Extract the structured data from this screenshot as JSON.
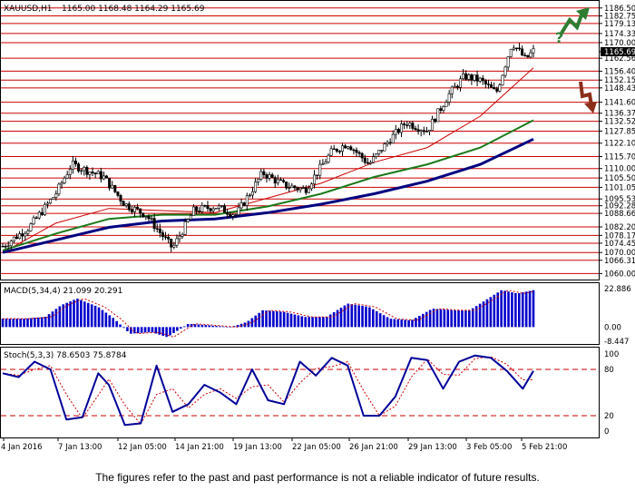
{
  "header": {
    "symbol": "XAUUSD,H1",
    "ohlc": "1165.00 1168.48 1164.29 1165.69",
    "macd_label": "MACD(5,34,4) 21.099 20.291",
    "stoch_label": "Stoch(5,3,3) 78.6503 75.8784"
  },
  "footer": {
    "disclaimer": "The figures refer to the past and past performance is not a reliable indicator of future results."
  },
  "colors": {
    "grid_line": "#cc0000",
    "candle": "#000000",
    "ma_fast": "#cc0000",
    "ma_mid": "#1a7a1a",
    "ma_slow": "#000080",
    "macd_hist": "#0000cc",
    "macd_signal": "#cc0000",
    "stoch_main": "#000099",
    "stoch_signal": "#cc0000",
    "arrow_up": "#2e7d32",
    "arrow_down": "#8b2e1a"
  },
  "icons": {
    "up": "green-up-arrow-icon",
    "down": "brown-down-arrow-icon",
    "question": "question-mark-icon"
  },
  "chart_data": {
    "type": "candlestick",
    "symbol": "XAUUSD",
    "timeframe": "H1",
    "price_axis": {
      "labels": [
        "1186.50",
        "1182.75",
        "1179.13",
        "1174.33",
        "1170.00",
        "1165.69",
        "1162.56",
        "1156.40",
        "1152.15",
        "1148.43",
        "1141.60",
        "1136.37",
        "1132.52",
        "1127.85",
        "1122.10",
        "1115.70",
        "1110.00",
        "1105.50",
        "1101.05",
        "1095.53",
        "1092.28",
        "1088.66",
        "1082.20",
        "1078.17",
        "1074.45",
        "1070.00",
        "1066.31",
        "1060.00"
      ],
      "current_price": "1165.69",
      "range": [
        1058,
        1189
      ]
    },
    "time_axis": {
      "labels": [
        "4 Jan 2016",
        "7 Jan 13:00",
        "12 Jan 05:00",
        "14 Jan 21:00",
        "19 Jan 13:00",
        "22 Jan 05:00",
        "26 Jan 21:00",
        "29 Jan 13:00",
        "3 Feb 05:00",
        "5 Feb 21:00"
      ]
    },
    "price_path": {
      "x_fraction": [
        0,
        0.05,
        0.1,
        0.13,
        0.19,
        0.23,
        0.27,
        0.32,
        0.36,
        0.4,
        0.44,
        0.49,
        0.53,
        0.57,
        0.62,
        0.65,
        0.69,
        0.73,
        0.76,
        0.8,
        0.84,
        0.87,
        0.9,
        0.93,
        0.96,
        0.985,
        1.0
      ],
      "close": [
        1073,
        1082,
        1098,
        1112,
        1106,
        1093,
        1088,
        1072,
        1090,
        1092,
        1088,
        1108,
        1102,
        1100,
        1118,
        1122,
        1112,
        1124,
        1132,
        1128,
        1145,
        1154,
        1152,
        1146,
        1170,
        1162,
        1166
      ]
    },
    "moving_averages": [
      {
        "color": "red",
        "x_fraction": [
          0,
          0.1,
          0.2,
          0.3,
          0.4,
          0.5,
          0.6,
          0.7,
          0.8,
          0.9,
          1.0
        ],
        "values": [
          1070,
          1084,
          1091,
          1090,
          1089,
          1096,
          1103,
          1113,
          1120,
          1135,
          1158
        ]
      },
      {
        "color": "green",
        "x_fraction": [
          0,
          0.1,
          0.2,
          0.3,
          0.4,
          0.5,
          0.6,
          0.7,
          0.8,
          0.9,
          1.0
        ],
        "values": [
          1071,
          1079,
          1086,
          1088,
          1088,
          1092,
          1098,
          1106,
          1112,
          1120,
          1133
        ]
      },
      {
        "color": "navy",
        "x_fraction": [
          0,
          0.1,
          0.2,
          0.3,
          0.4,
          0.5,
          0.6,
          0.7,
          0.8,
          0.9,
          1.0
        ],
        "values": [
          1070,
          1076,
          1082,
          1085,
          1086,
          1089,
          1093,
          1098,
          1104,
          1112,
          1124
        ]
      }
    ],
    "macd": {
      "axis_labels": [
        "22.886",
        "0.00",
        "-8.447"
      ],
      "range": [
        -8.447,
        22.886
      ],
      "x_fraction": [
        0,
        0.04,
        0.08,
        0.11,
        0.14,
        0.18,
        0.21,
        0.24,
        0.28,
        0.31,
        0.35,
        0.39,
        0.43,
        0.46,
        0.49,
        0.53,
        0.57,
        0.61,
        0.65,
        0.69,
        0.73,
        0.77,
        0.81,
        0.85,
        0.88,
        0.91,
        0.94,
        0.97,
        1.0
      ],
      "values": [
        5,
        5,
        6,
        13,
        17,
        12,
        5,
        -4,
        -3,
        -6,
        2,
        1,
        0,
        3,
        10,
        9,
        6,
        6,
        14,
        12,
        5,
        4,
        11,
        10,
        10,
        16,
        22,
        20,
        22
      ]
    },
    "stochastic": {
      "axis_labels": [
        "100",
        "80",
        "20",
        "0"
      ],
      "levels": [
        80,
        20
      ],
      "x_fraction": [
        0,
        0.03,
        0.06,
        0.09,
        0.12,
        0.15,
        0.18,
        0.2,
        0.23,
        0.26,
        0.29,
        0.32,
        0.35,
        0.38,
        0.41,
        0.44,
        0.47,
        0.5,
        0.53,
        0.56,
        0.59,
        0.62,
        0.65,
        0.68,
        0.71,
        0.74,
        0.77,
        0.8,
        0.83,
        0.86,
        0.89,
        0.92,
        0.95,
        0.98,
        1.0
      ],
      "values": [
        75,
        70,
        90,
        80,
        15,
        18,
        75,
        60,
        8,
        10,
        85,
        25,
        35,
        60,
        50,
        35,
        80,
        40,
        35,
        90,
        72,
        95,
        85,
        20,
        20,
        45,
        95,
        92,
        55,
        90,
        98,
        95,
        78,
        55,
        78
      ]
    },
    "annotations": [
      "?"
    ]
  }
}
